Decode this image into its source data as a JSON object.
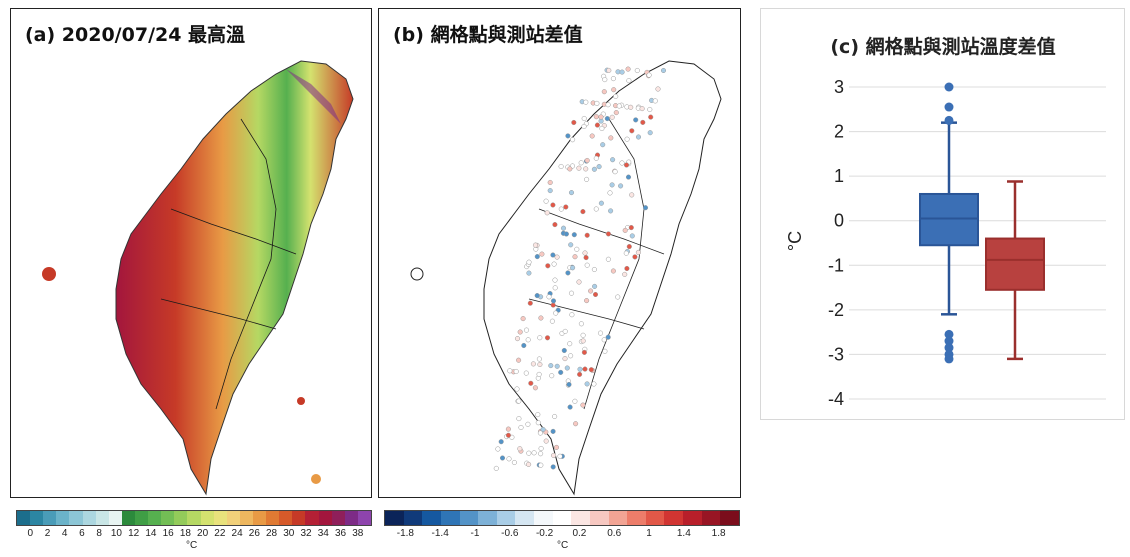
{
  "panel_a": {
    "title": "(a) 2020/07/24 最高溫",
    "colorbar_ticks": [
      "0",
      "2",
      "4",
      "6",
      "8",
      "10",
      "12",
      "14",
      "16",
      "18",
      "20",
      "22",
      "24",
      "26",
      "28",
      "30",
      "32",
      "34",
      "36",
      "38"
    ],
    "unit": "°C",
    "colors": [
      "#1c6e8c",
      "#2c86a3",
      "#4a9cb8",
      "#6bb3c9",
      "#8cc6d6",
      "#acd7e0",
      "#c9e6e6",
      "#e8f4f2",
      "#2c8a3c",
      "#3f9e45",
      "#56b04f",
      "#73be55",
      "#93cb5a",
      "#b5d863",
      "#d4e26f",
      "#e9e27c",
      "#f1d07a",
      "#eeb75f",
      "#e89a45",
      "#e07a33",
      "#d65a2a",
      "#c63a27",
      "#b42035",
      "#a3163d",
      "#8f1f5a",
      "#7d2b86",
      "#8e44ad"
    ]
  },
  "panel_b": {
    "title": "(b) 網格點與測站差值",
    "colorbar_ticks": [
      "-1.8",
      "-1.4",
      "-1",
      "-0.6",
      "-0.2",
      "0.2",
      "0.6",
      "1",
      "1.4",
      "1.8"
    ],
    "unit": "°C",
    "colors": [
      "#0b2459",
      "#103a7a",
      "#1558a0",
      "#2f75b6",
      "#5393c7",
      "#7db1d7",
      "#a9cde6",
      "#d5e6f2",
      "#f4f8fb",
      "#ffffff",
      "#fbe6e3",
      "#f7c8c1",
      "#f2a494",
      "#ed7d6a",
      "#e25848",
      "#d13532",
      "#b81f2a",
      "#981524",
      "#7b0d1c"
    ]
  },
  "chart_data": {
    "type": "box",
    "title": "(c) 網格點與測站溫度差值",
    "ylabel": "°C",
    "ylim": [
      -4,
      3
    ],
    "yticks": [
      "3",
      "2",
      "1",
      "0",
      "-1",
      "-2",
      "-3",
      "-4"
    ],
    "grid": true,
    "boxes": [
      {
        "color": "#3b6fb5",
        "whisker_low": -2.1,
        "q1": -0.55,
        "median": 0.05,
        "q3": 0.6,
        "whisker_high": 2.2,
        "outliers": [
          3.0,
          2.55,
          2.25,
          -2.55,
          -2.7,
          -2.85,
          -3.0,
          -3.1
        ]
      },
      {
        "color": "#b8413f",
        "whisker_low": -3.1,
        "q1": -1.55,
        "median": -0.88,
        "q3": -0.4,
        "whisker_high": 0.88,
        "outliers": []
      }
    ]
  }
}
